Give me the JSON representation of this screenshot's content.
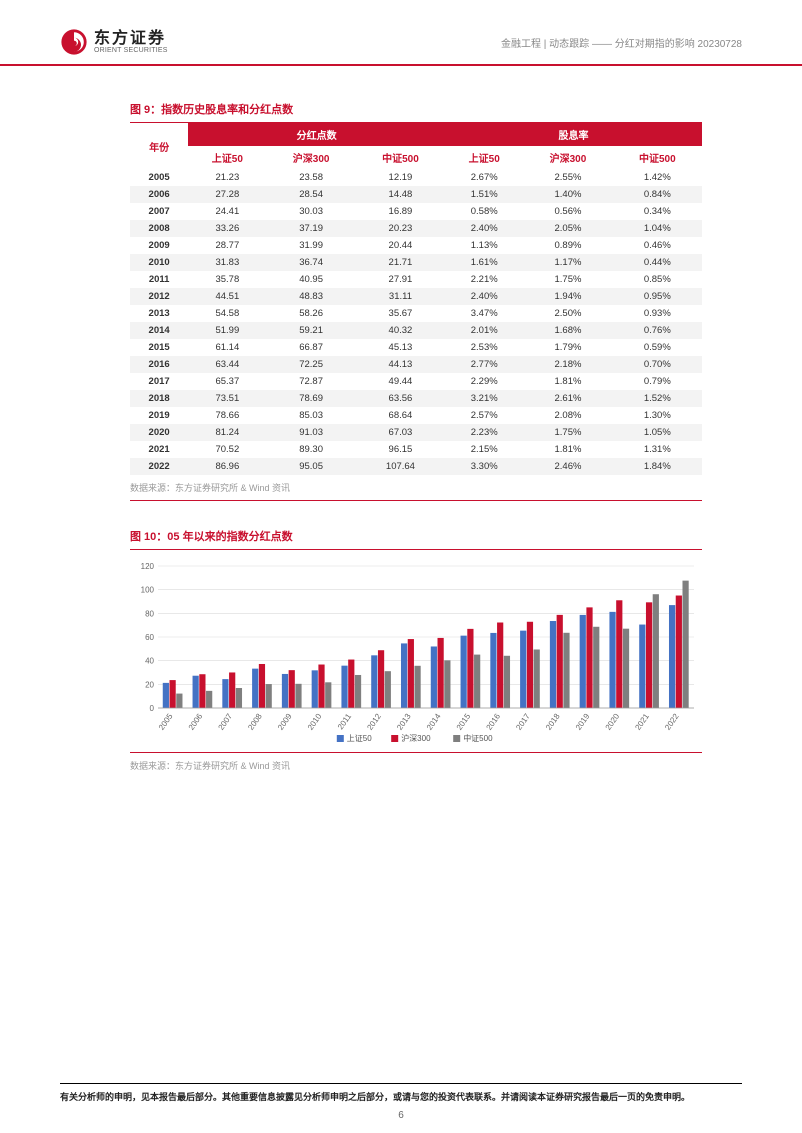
{
  "header": {
    "logo_cn": "东方证券",
    "logo_en": "ORIENT SECURITIES",
    "right_text": "金融工程 | 动态跟踪 —— 分红对期指的影响 20230728"
  },
  "figure9": {
    "title": "图 9：指数历史股息率和分红点数",
    "group1": "分红点数",
    "group2": "股息率",
    "year_label": "年份",
    "sub_headers": [
      "上证50",
      "沪深300",
      "中证500",
      "上证50",
      "沪深300",
      "中证500"
    ],
    "rows": [
      {
        "year": "2005",
        "v": [
          "21.23",
          "23.58",
          "12.19",
          "2.67%",
          "2.55%",
          "1.42%"
        ]
      },
      {
        "year": "2006",
        "v": [
          "27.28",
          "28.54",
          "14.48",
          "1.51%",
          "1.40%",
          "0.84%"
        ]
      },
      {
        "year": "2007",
        "v": [
          "24.41",
          "30.03",
          "16.89",
          "0.58%",
          "0.56%",
          "0.34%"
        ]
      },
      {
        "year": "2008",
        "v": [
          "33.26",
          "37.19",
          "20.23",
          "2.40%",
          "2.05%",
          "1.04%"
        ]
      },
      {
        "year": "2009",
        "v": [
          "28.77",
          "31.99",
          "20.44",
          "1.13%",
          "0.89%",
          "0.46%"
        ]
      },
      {
        "year": "2010",
        "v": [
          "31.83",
          "36.74",
          "21.71",
          "1.61%",
          "1.17%",
          "0.44%"
        ]
      },
      {
        "year": "2011",
        "v": [
          "35.78",
          "40.95",
          "27.91",
          "2.21%",
          "1.75%",
          "0.85%"
        ]
      },
      {
        "year": "2012",
        "v": [
          "44.51",
          "48.83",
          "31.11",
          "2.40%",
          "1.94%",
          "0.95%"
        ]
      },
      {
        "year": "2013",
        "v": [
          "54.58",
          "58.26",
          "35.67",
          "3.47%",
          "2.50%",
          "0.93%"
        ]
      },
      {
        "year": "2014",
        "v": [
          "51.99",
          "59.21",
          "40.32",
          "2.01%",
          "1.68%",
          "0.76%"
        ]
      },
      {
        "year": "2015",
        "v": [
          "61.14",
          "66.87",
          "45.13",
          "2.53%",
          "1.79%",
          "0.59%"
        ]
      },
      {
        "year": "2016",
        "v": [
          "63.44",
          "72.25",
          "44.13",
          "2.77%",
          "2.18%",
          "0.70%"
        ]
      },
      {
        "year": "2017",
        "v": [
          "65.37",
          "72.87",
          "49.44",
          "2.29%",
          "1.81%",
          "0.79%"
        ]
      },
      {
        "year": "2018",
        "v": [
          "73.51",
          "78.69",
          "63.56",
          "3.21%",
          "2.61%",
          "1.52%"
        ]
      },
      {
        "year": "2019",
        "v": [
          "78.66",
          "85.03",
          "68.64",
          "2.57%",
          "2.08%",
          "1.30%"
        ]
      },
      {
        "year": "2020",
        "v": [
          "81.24",
          "91.03",
          "67.03",
          "2.23%",
          "1.75%",
          "1.05%"
        ]
      },
      {
        "year": "2021",
        "v": [
          "70.52",
          "89.30",
          "96.15",
          "2.15%",
          "1.81%",
          "1.31%"
        ]
      },
      {
        "year": "2022",
        "v": [
          "86.96",
          "95.05",
          "107.64",
          "3.30%",
          "2.46%",
          "1.84%"
        ]
      }
    ],
    "source": "数据来源：东方证券研究所 & Wind 资讯"
  },
  "figure10": {
    "title": "图 10：05 年以来的指数分红点数",
    "source": "数据来源：东方证券研究所 & Wind 资讯",
    "chart": {
      "type": "bar",
      "categories": [
        "2005",
        "2006",
        "2007",
        "2008",
        "2009",
        "2010",
        "2011",
        "2012",
        "2013",
        "2014",
        "2015",
        "2016",
        "2017",
        "2018",
        "2019",
        "2020",
        "2021",
        "2022"
      ],
      "series": [
        {
          "name": "上证50",
          "color": "#4472c4",
          "values": [
            21.23,
            27.28,
            24.41,
            33.26,
            28.77,
            31.83,
            35.78,
            44.51,
            54.58,
            51.99,
            61.14,
            63.44,
            65.37,
            73.51,
            78.66,
            81.24,
            70.52,
            86.96
          ]
        },
        {
          "name": "沪深300",
          "color": "#c8102e",
          "values": [
            23.58,
            28.54,
            30.03,
            37.19,
            31.99,
            36.74,
            40.95,
            48.83,
            58.26,
            59.21,
            66.87,
            72.25,
            72.87,
            78.69,
            85.03,
            91.03,
            89.3,
            95.05
          ]
        },
        {
          "name": "中证500",
          "color": "#7f7f7f",
          "values": [
            12.19,
            14.48,
            16.89,
            20.23,
            20.44,
            21.71,
            27.91,
            31.11,
            35.67,
            40.32,
            45.13,
            44.13,
            49.44,
            63.56,
            68.64,
            67.03,
            96.15,
            107.64
          ]
        }
      ],
      "ylim": [
        0,
        120
      ],
      "ytick_step": 20,
      "yticks": [
        0,
        20,
        40,
        60,
        80,
        100,
        120
      ],
      "background_color": "#ffffff",
      "grid_color": "#d9d9d9",
      "axis_label_fontsize": 8,
      "legend_fontsize": 8,
      "bar_group_width": 0.68
    }
  },
  "footer": {
    "text": "有关分析师的申明，见本报告最后部分。其他重要信息披露见分析师申明之后部分，或请与您的投资代表联系。并请阅读本证券研究报告最后一页的免责申明。",
    "page": "6"
  }
}
